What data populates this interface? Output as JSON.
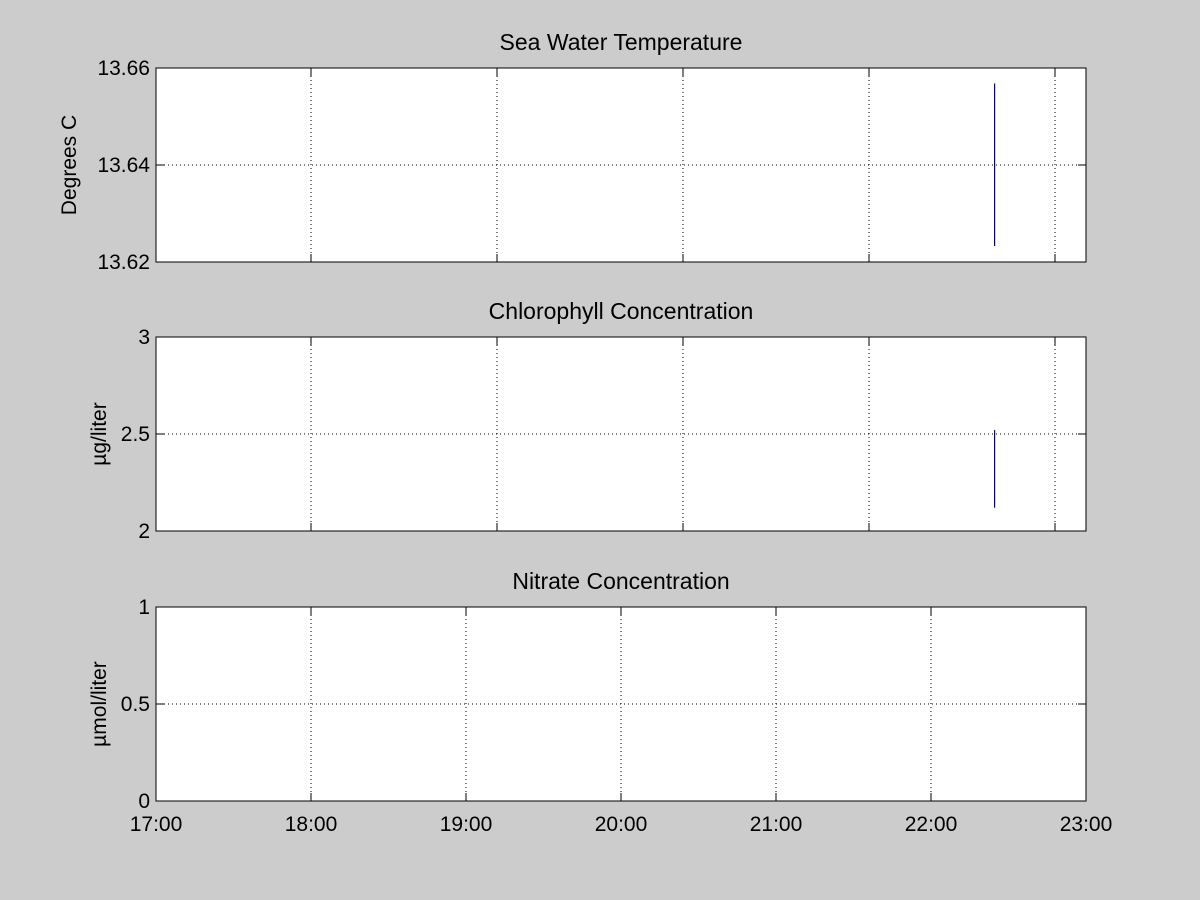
{
  "figure": {
    "background": "#cccccc",
    "axes_background": "#ffffff",
    "line_color": "#00008b"
  },
  "chart_data": [
    {
      "type": "line",
      "title": "Sea Water Temperature",
      "xlabel": "",
      "ylabel": "Degrees C",
      "xlim": [
        17.0,
        23.0
      ],
      "ylim": [
        13.62,
        13.66
      ],
      "yticks": [
        13.62,
        13.64,
        13.66
      ],
      "ytick_labels": [
        "13.62",
        "13.64",
        "13.66"
      ],
      "xgrid": [
        18.0,
        19.2,
        20.4,
        21.6,
        22.8
      ],
      "show_xtick_labels": false,
      "grid": true,
      "series": [
        {
          "name": "temperature",
          "x": [
            22.41,
            22.41
          ],
          "y": [
            13.6233,
            13.6568
          ]
        }
      ]
    },
    {
      "type": "line",
      "title": "Chlorophyll Concentration",
      "xlabel": "",
      "ylabel": "µg/liter",
      "xlim": [
        17.0,
        23.0
      ],
      "ylim": [
        2,
        3
      ],
      "yticks": [
        2,
        2.5,
        3
      ],
      "ytick_labels": [
        "2",
        "2.5",
        "3"
      ],
      "xgrid": [
        18.0,
        19.2,
        20.4,
        21.6,
        22.8
      ],
      "show_xtick_labels": false,
      "grid": true,
      "series": [
        {
          "name": "chlorophyll",
          "x": [
            22.41,
            22.41
          ],
          "y": [
            2.12,
            2.52
          ]
        }
      ]
    },
    {
      "type": "line",
      "title": "Nitrate Concentration",
      "xlabel": "",
      "ylabel": "µmol/liter",
      "xlim": [
        17.0,
        23.0
      ],
      "ylim": [
        0,
        1
      ],
      "yticks": [
        0,
        0.5,
        1
      ],
      "ytick_labels": [
        "0",
        "0.5",
        "1"
      ],
      "xticks": [
        17,
        18,
        19,
        20,
        21,
        22,
        23
      ],
      "xtick_labels": [
        "17:00",
        "18:00",
        "19:00",
        "20:00",
        "21:00",
        "22:00",
        "23:00"
      ],
      "xgrid": [
        18,
        19,
        20,
        21,
        22
      ],
      "show_xtick_labels": true,
      "grid": true,
      "series": []
    }
  ]
}
